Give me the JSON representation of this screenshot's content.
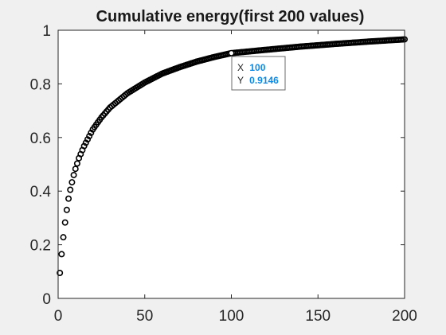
{
  "window": {
    "background": "#f0f0f0"
  },
  "chart_data": {
    "type": "scatter",
    "title": "Cumulative energy(first 200 values)",
    "xlabel": "",
    "ylabel": "",
    "xlim": [
      0,
      200
    ],
    "ylim": [
      0,
      1
    ],
    "x_ticks": [
      "0",
      "50",
      "100",
      "150",
      "200"
    ],
    "y_ticks": [
      "0",
      "0.2",
      "0.4",
      "0.6",
      "0.8",
      "1"
    ],
    "grid": false,
    "marker": "open-circle",
    "marker_color": "#000000",
    "axes_background": "#ffffff",
    "series": [
      {
        "x_start": 1,
        "x_end": 200,
        "anchor_points": [
          [
            1,
            0.095
          ],
          [
            2,
            0.165
          ],
          [
            3,
            0.228
          ],
          [
            4,
            0.283
          ],
          [
            5,
            0.33
          ],
          [
            6,
            0.372
          ],
          [
            7,
            0.405
          ],
          [
            8,
            0.433
          ],
          [
            9,
            0.46
          ],
          [
            10,
            0.483
          ],
          [
            12,
            0.523
          ],
          [
            15,
            0.568
          ],
          [
            20,
            0.63
          ],
          [
            25,
            0.675
          ],
          [
            30,
            0.712
          ],
          [
            40,
            0.765
          ],
          [
            50,
            0.805
          ],
          [
            60,
            0.838
          ],
          [
            70,
            0.862
          ],
          [
            80,
            0.883
          ],
          [
            90,
            0.9
          ],
          [
            100,
            0.9146
          ],
          [
            120,
            0.927
          ],
          [
            140,
            0.939
          ],
          [
            160,
            0.949
          ],
          [
            180,
            0.958
          ],
          [
            200,
            0.966
          ]
        ]
      }
    ],
    "datatip": {
      "x_label": "X",
      "x_value": "100",
      "y_label": "Y",
      "y_value": "0.9146",
      "point": [
        100,
        0.9146
      ],
      "value_color": "#0a8ae6"
    }
  }
}
